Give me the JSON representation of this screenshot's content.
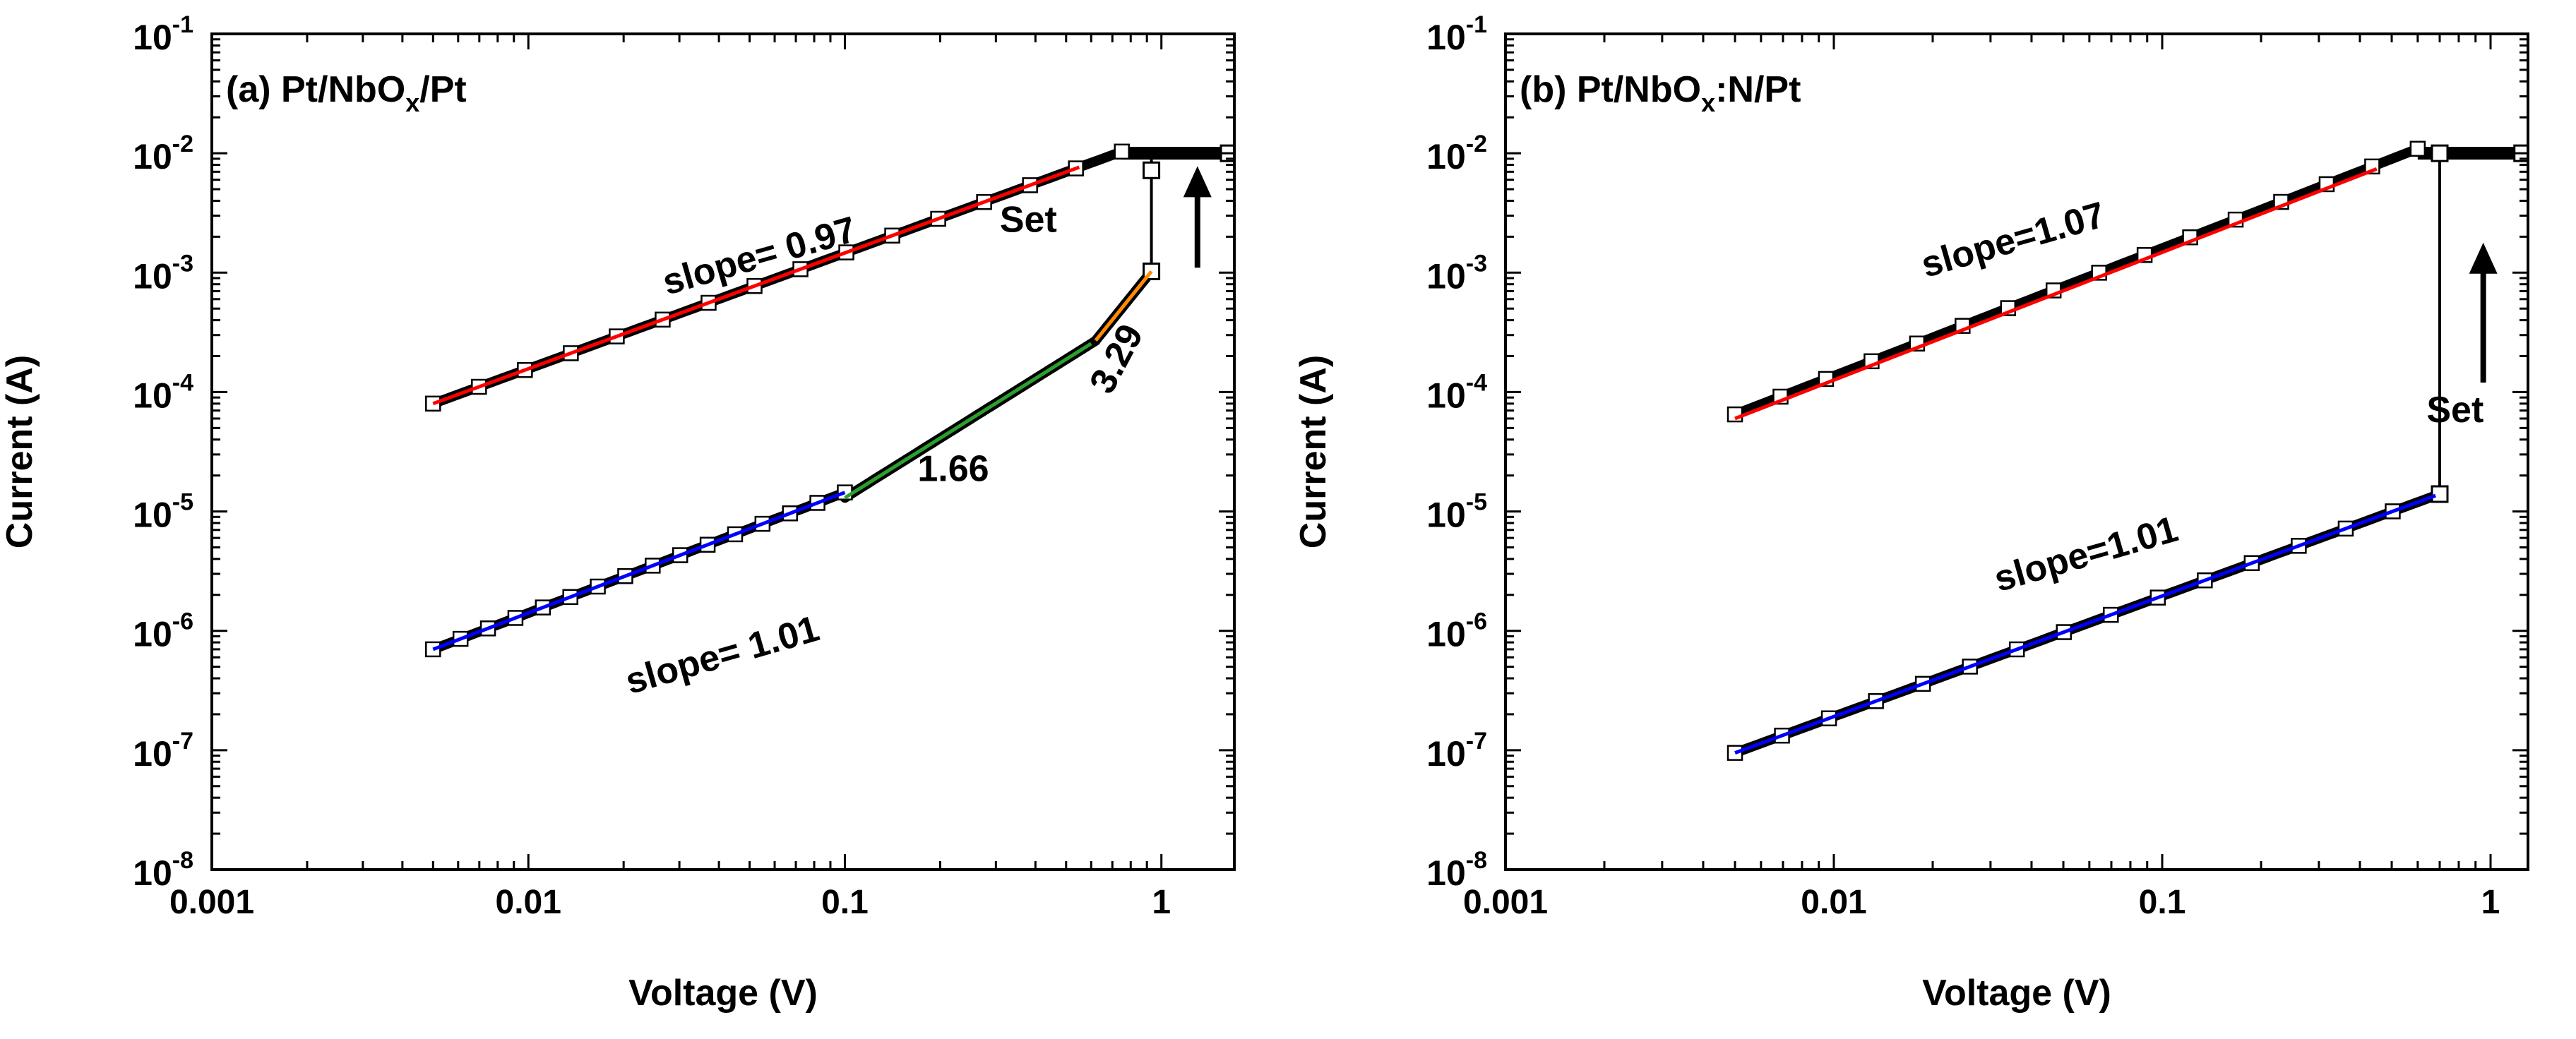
{
  "chart_data": [
    {
      "type": "scatter",
      "panel_label_prefix": "(a) Pt/NbO",
      "panel_label_sub": "x",
      "panel_label_suffix": "/Pt",
      "xlabel": "Voltage (V)",
      "ylabel": "Current (A)",
      "xscale": "log",
      "yscale": "log",
      "xlim": [
        0.001,
        1.7
      ],
      "ylim": [
        1e-08,
        0.1
      ],
      "xticks": [
        {
          "value": 0.001,
          "label": "0.001"
        },
        {
          "value": 0.01,
          "label": "0.01"
        },
        {
          "value": 0.1,
          "label": "0.1"
        },
        {
          "value": 1,
          "label": "1"
        }
      ],
      "yticks": [
        {
          "value": 1e-08,
          "exp": "-8"
        },
        {
          "value": 1e-07,
          "exp": "-7"
        },
        {
          "value": 1e-06,
          "exp": "-6"
        },
        {
          "value": 1e-05,
          "exp": "-5"
        },
        {
          "value": 0.0001,
          "exp": "-4"
        },
        {
          "value": 0.001,
          "exp": "-3"
        },
        {
          "value": 0.01,
          "exp": "-2"
        },
        {
          "value": 0.1,
          "exp": "-1"
        }
      ],
      "ytick_base": "10",
      "compliance": 0.01,
      "compliance_start_v": 0.75,
      "set_voltage": 0.93,
      "series": [
        {
          "name": "LRS",
          "v_start": 0.005,
          "i_start": 8e-05,
          "slope": 0.97,
          "v_end": 0.75,
          "marker_every": 4
        },
        {
          "name": "HRS-ohmic",
          "v_start": 0.005,
          "i_start": 7e-07,
          "slope": 1.01,
          "v_end": 0.1,
          "marker_every": 4
        },
        {
          "name": "HRS-child",
          "v_start": 0.1,
          "i_start": 1.3e-05,
          "slope": 1.66,
          "v_end": 0.62,
          "marker_every": 0
        },
        {
          "name": "HRS-steep",
          "v_start": 0.62,
          "i_start": 0.00027,
          "slope": 3.29,
          "v_end": 0.93,
          "marker_every": 0
        }
      ],
      "fits": [
        {
          "name": "fit-lrs",
          "color": "#ff0000",
          "slope": 0.97,
          "v_start": 0.005,
          "i_start": 8e-05,
          "v_end": 0.55
        },
        {
          "name": "fit-hrs-ohmic",
          "color": "#0000ff",
          "slope": 1.01,
          "v_start": 0.005,
          "i_start": 7e-07,
          "v_end": 0.1
        },
        {
          "name": "fit-hrs-child",
          "color": "#2ca02c",
          "slope": 1.66,
          "v_start": 0.1,
          "i_start": 1.3e-05,
          "v_end": 0.6
        },
        {
          "name": "fit-hrs-steep",
          "color": "#ff8c00",
          "slope": 3.29,
          "v_start": 0.62,
          "i_start": 0.00027,
          "v_end": 0.93
        }
      ],
      "annotations": [
        {
          "name": "slope-lrs",
          "text": "slope= 0.97",
          "v": 0.055,
          "i": 0.0011,
          "angle": -16
        },
        {
          "name": "slope-hrs",
          "text": "slope= 1.01",
          "v": 0.042,
          "i": 5e-07,
          "angle": -16
        },
        {
          "name": "slope-child",
          "text": "1.66",
          "v": 0.22,
          "i": 1.8e-05,
          "angle": 0
        },
        {
          "name": "slope-steep",
          "text": "3.29",
          "v": 0.78,
          "i": 0.00017,
          "angle": -62
        },
        {
          "name": "set-label",
          "text": "Set",
          "v": 0.38,
          "i": 0.0022,
          "angle": 0
        }
      ],
      "arrow": {
        "v": 1.3,
        "i_from": 0.0011,
        "i_to": 0.007
      }
    },
    {
      "type": "scatter",
      "panel_label_prefix": "(b) Pt/NbO",
      "panel_label_sub": "x",
      "panel_label_suffix": ":N/Pt",
      "xlabel": "Voltage (V)",
      "ylabel": "Current (A)",
      "xscale": "log",
      "yscale": "log",
      "xlim": [
        0.001,
        1.3
      ],
      "ylim": [
        1e-08,
        0.1
      ],
      "xticks": [
        {
          "value": 0.001,
          "label": "0.001"
        },
        {
          "value": 0.01,
          "label": "0.01"
        },
        {
          "value": 0.1,
          "label": "0.1"
        },
        {
          "value": 1,
          "label": "1"
        }
      ],
      "yticks": [
        {
          "value": 1e-08,
          "exp": "-8"
        },
        {
          "value": 1e-07,
          "exp": "-7"
        },
        {
          "value": 1e-06,
          "exp": "-6"
        },
        {
          "value": 1e-05,
          "exp": "-5"
        },
        {
          "value": 0.0001,
          "exp": "-4"
        },
        {
          "value": 0.001,
          "exp": "-3"
        },
        {
          "value": 0.01,
          "exp": "-2"
        },
        {
          "value": 0.1,
          "exp": "-1"
        }
      ],
      "ytick_base": "10",
      "compliance": 0.01,
      "compliance_start_v": 0.6,
      "set_voltage": 0.7,
      "series": [
        {
          "name": "LRS",
          "v_start": 0.005,
          "i_start": 6.5e-05,
          "slope": 1.07,
          "v_end": 0.6,
          "marker_every": 4
        },
        {
          "name": "HRS",
          "v_start": 0.005,
          "i_start": 9.5e-08,
          "slope": 1.01,
          "v_end": 0.7,
          "marker_every": 4
        }
      ],
      "fits": [
        {
          "name": "fit-lrs",
          "color": "#ff0000",
          "slope": 1.07,
          "v_start": 0.005,
          "i_start": 6e-05,
          "v_end": 0.45
        },
        {
          "name": "fit-hrs",
          "color": "#0000ff",
          "slope": 1.01,
          "v_start": 0.005,
          "i_start": 9.5e-08,
          "v_end": 0.68
        }
      ],
      "annotations": [
        {
          "name": "slope-lrs",
          "text": "slope=1.07",
          "v": 0.036,
          "i": 0.0015,
          "angle": -16
        },
        {
          "name": "slope-hrs",
          "text": "slope=1.01",
          "v": 0.06,
          "i": 3.5e-06,
          "angle": -16
        },
        {
          "name": "set-label",
          "text": "Set",
          "v": 0.78,
          "i": 5.6e-05,
          "angle": 0
        }
      ],
      "arrow": {
        "v": 0.95,
        "i_from": 0.00012,
        "i_to": 0.0016
      }
    }
  ]
}
